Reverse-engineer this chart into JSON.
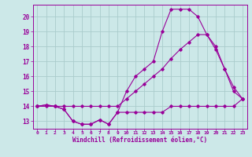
{
  "xlabel": "Windchill (Refroidissement éolien,°C)",
  "bg_color": "#cce8e8",
  "line_color": "#990099",
  "grid_color": "#aacccc",
  "xlim": [
    -0.5,
    23.5
  ],
  "ylim": [
    12.5,
    20.8
  ],
  "yticks": [
    13,
    14,
    15,
    16,
    17,
    18,
    19,
    20
  ],
  "xticks": [
    0,
    1,
    2,
    3,
    4,
    5,
    6,
    7,
    8,
    9,
    10,
    11,
    12,
    13,
    14,
    15,
    16,
    17,
    18,
    19,
    20,
    21,
    22,
    23
  ],
  "line1_x": [
    0,
    1,
    2,
    3,
    4,
    5,
    6,
    7,
    8,
    9,
    10,
    11,
    12,
    13,
    14,
    15,
    16,
    17,
    18,
    19,
    20,
    21,
    22,
    23
  ],
  "line1_y": [
    14.0,
    14.1,
    14.0,
    13.8,
    13.0,
    12.8,
    12.8,
    13.1,
    12.8,
    13.6,
    13.6,
    13.6,
    13.6,
    13.6,
    13.6,
    14.0,
    14.0,
    14.0,
    14.0,
    14.0,
    14.0,
    14.0,
    14.0,
    14.5
  ],
  "line2_x": [
    0,
    1,
    2,
    3,
    4,
    5,
    6,
    7,
    8,
    9,
    10,
    11,
    12,
    13,
    14,
    15,
    16,
    17,
    18,
    19,
    20,
    21,
    22,
    23
  ],
  "line2_y": [
    14.0,
    14.1,
    14.0,
    13.8,
    13.0,
    12.8,
    12.8,
    13.1,
    12.8,
    13.6,
    15.0,
    16.0,
    16.5,
    17.0,
    19.0,
    20.5,
    20.5,
    20.5,
    20.0,
    18.8,
    18.0,
    16.5,
    15.3,
    14.5
  ],
  "line3_x": [
    0,
    1,
    2,
    3,
    4,
    5,
    6,
    7,
    8,
    9,
    10,
    11,
    12,
    13,
    14,
    15,
    16,
    17,
    18,
    19,
    20,
    21,
    22,
    23
  ],
  "line3_y": [
    14.0,
    14.0,
    14.0,
    14.0,
    14.0,
    14.0,
    14.0,
    14.0,
    14.0,
    14.0,
    14.5,
    15.0,
    15.5,
    16.0,
    16.5,
    17.2,
    17.8,
    18.3,
    18.8,
    18.8,
    17.8,
    16.5,
    15.0,
    14.5
  ]
}
